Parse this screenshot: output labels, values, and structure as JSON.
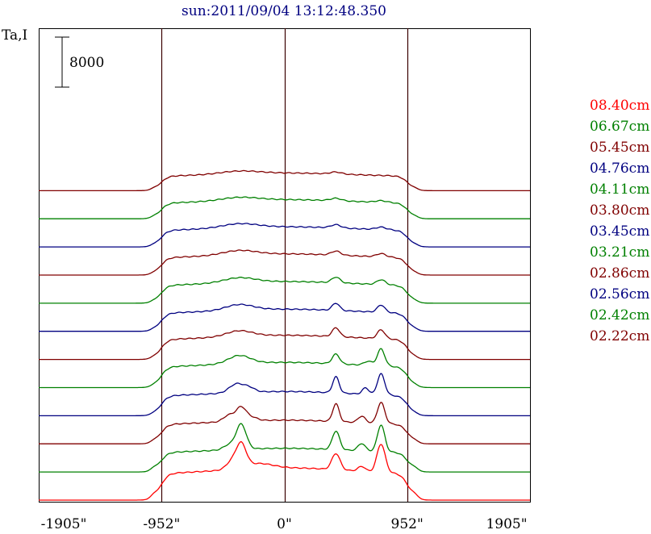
{
  "title": "sun:2011/09/04 13:12:48.350",
  "chart_data": {
    "type": "line",
    "ylabel": "Ta,I",
    "scale_bar_label": "8000",
    "scale_bar_value": 8000,
    "x_ticks": [
      "-1905\"",
      "-952\"",
      "0\"",
      "952\"",
      "1905\""
    ],
    "x_tick_values": [
      -1905,
      -952,
      0,
      952,
      1905
    ],
    "xlim": [
      -1905,
      1905
    ],
    "vlines": [
      -952,
      0,
      952
    ],
    "series": [
      {
        "name": "08.40cm",
        "color": "#ff0000",
        "base": 0,
        "edge": 0.75,
        "plateau": 3.2,
        "peaks": [
          [
            -335,
            2.9,
            55
          ],
          [
            -410,
            0.9,
            60
          ],
          [
            -200,
            0.6,
            150
          ],
          [
            400,
            2.0,
            45
          ],
          [
            600,
            0.6,
            40
          ],
          [
            750,
            3.5,
            45
          ]
        ]
      },
      {
        "name": "06.67cm",
        "color": "#008000",
        "base": 4500,
        "edge": 0.6,
        "plateau": 2.35,
        "peaks": [
          [
            -335,
            3.1,
            55
          ],
          [
            -430,
            0.6,
            60
          ],
          [
            400,
            2.3,
            40
          ],
          [
            600,
            0.9,
            40
          ],
          [
            750,
            3.3,
            40
          ]
        ]
      },
      {
        "name": "05.45cm",
        "color": "#800000",
        "base": 9000,
        "edge": 0.45,
        "plateau": 2.35,
        "peaks": [
          [
            -335,
            1.7,
            55
          ],
          [
            -430,
            0.8,
            60
          ],
          [
            -250,
            0.4,
            60
          ],
          [
            400,
            2.2,
            35
          ],
          [
            600,
            0.8,
            40
          ],
          [
            750,
            2.6,
            40
          ]
        ]
      },
      {
        "name": "04.76cm",
        "color": "#000080",
        "base": 13500,
        "edge": 0.3,
        "plateau": 2.4,
        "peaks": [
          [
            -370,
            1.1,
            80
          ],
          [
            -270,
            0.5,
            60
          ],
          [
            400,
            2.0,
            35
          ],
          [
            630,
            0.8,
            35
          ],
          [
            750,
            2.6,
            40
          ]
        ]
      },
      {
        "name": "04.11cm",
        "color": "#008000",
        "base": 18000,
        "edge": 0.3,
        "plateau": 2.5,
        "peaks": [
          [
            -350,
            1.0,
            120
          ],
          [
            400,
            1.2,
            40
          ],
          [
            650,
            0.5,
            45
          ],
          [
            750,
            2.1,
            40
          ]
        ]
      },
      {
        "name": "03.80cm",
        "color": "#800000",
        "base": 22500,
        "edge": 0.3,
        "plateau": 2.4,
        "peaks": [
          [
            -350,
            0.7,
            140
          ],
          [
            400,
            1.1,
            40
          ],
          [
            750,
            1.1,
            40
          ]
        ]
      },
      {
        "name": "03.45cm",
        "color": "#000080",
        "base": 27000,
        "edge": 0.3,
        "plateau": 2.2,
        "peaks": [
          [
            -350,
            0.7,
            150
          ],
          [
            400,
            0.9,
            40
          ],
          [
            750,
            0.9,
            40
          ]
        ]
      },
      {
        "name": "03.21cm",
        "color": "#008000",
        "base": 31500,
        "edge": 0.3,
        "plateau": 2.15,
        "peaks": [
          [
            -350,
            0.6,
            170
          ],
          [
            400,
            0.7,
            45
          ],
          [
            750,
            0.6,
            45
          ]
        ]
      },
      {
        "name": "02.86cm",
        "color": "#800000",
        "base": 36000,
        "edge": 0.3,
        "plateau": 2.1,
        "peaks": [
          [
            -350,
            0.55,
            180
          ],
          [
            400,
            0.5,
            50
          ],
          [
            750,
            0.4,
            50
          ]
        ]
      },
      {
        "name": "02.56cm",
        "color": "#000080",
        "base": 40500,
        "edge": 0.3,
        "plateau": 2.0,
        "peaks": [
          [
            -350,
            0.5,
            190
          ],
          [
            400,
            0.4,
            55
          ],
          [
            750,
            0.3,
            55
          ]
        ]
      },
      {
        "name": "02.42cm",
        "color": "#008000",
        "base": 45000,
        "edge": 0.3,
        "plateau": 1.9,
        "peaks": [
          [
            -350,
            0.4,
            200
          ],
          [
            400,
            0.3,
            60
          ],
          [
            750,
            0.2,
            60
          ]
        ]
      },
      {
        "name": "02.22cm",
        "color": "#800000",
        "base": 49500,
        "edge": 0.3,
        "plateau": 1.75,
        "peaks": [
          [
            -350,
            0.35,
            210
          ],
          [
            400,
            0.25,
            60
          ]
        ]
      }
    ]
  }
}
